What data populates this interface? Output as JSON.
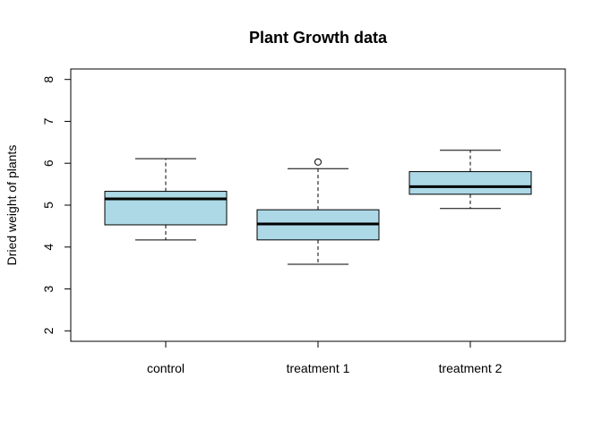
{
  "chart_data": {
    "type": "box",
    "title": "Plant Growth data",
    "xlabel": "",
    "ylabel": "Dried weight of plants",
    "ylim": [
      1.75,
      8.25
    ],
    "yticks": [
      2,
      3,
      4,
      5,
      6,
      7,
      8
    ],
    "ytick_labels": [
      "2",
      "3",
      "4",
      "5",
      "6",
      "7",
      "8"
    ],
    "categories": [
      "control",
      "treatment 1",
      "treatment 2"
    ],
    "box_color": "#add8e6",
    "boxes": [
      {
        "category": "control",
        "whisker_low": 4.17,
        "q1": 4.53,
        "median": 5.15,
        "q3": 5.33,
        "whisker_high": 6.11,
        "outliers": []
      },
      {
        "category": "treatment 1",
        "whisker_low": 3.59,
        "q1": 4.17,
        "median": 4.55,
        "q3": 4.89,
        "whisker_high": 5.87,
        "outliers": [
          6.03
        ]
      },
      {
        "category": "treatment 2",
        "whisker_low": 4.92,
        "q1": 5.26,
        "median": 5.44,
        "q3": 5.8,
        "whisker_high": 6.31,
        "outliers": []
      }
    ],
    "grid": false,
    "legend": "none"
  }
}
